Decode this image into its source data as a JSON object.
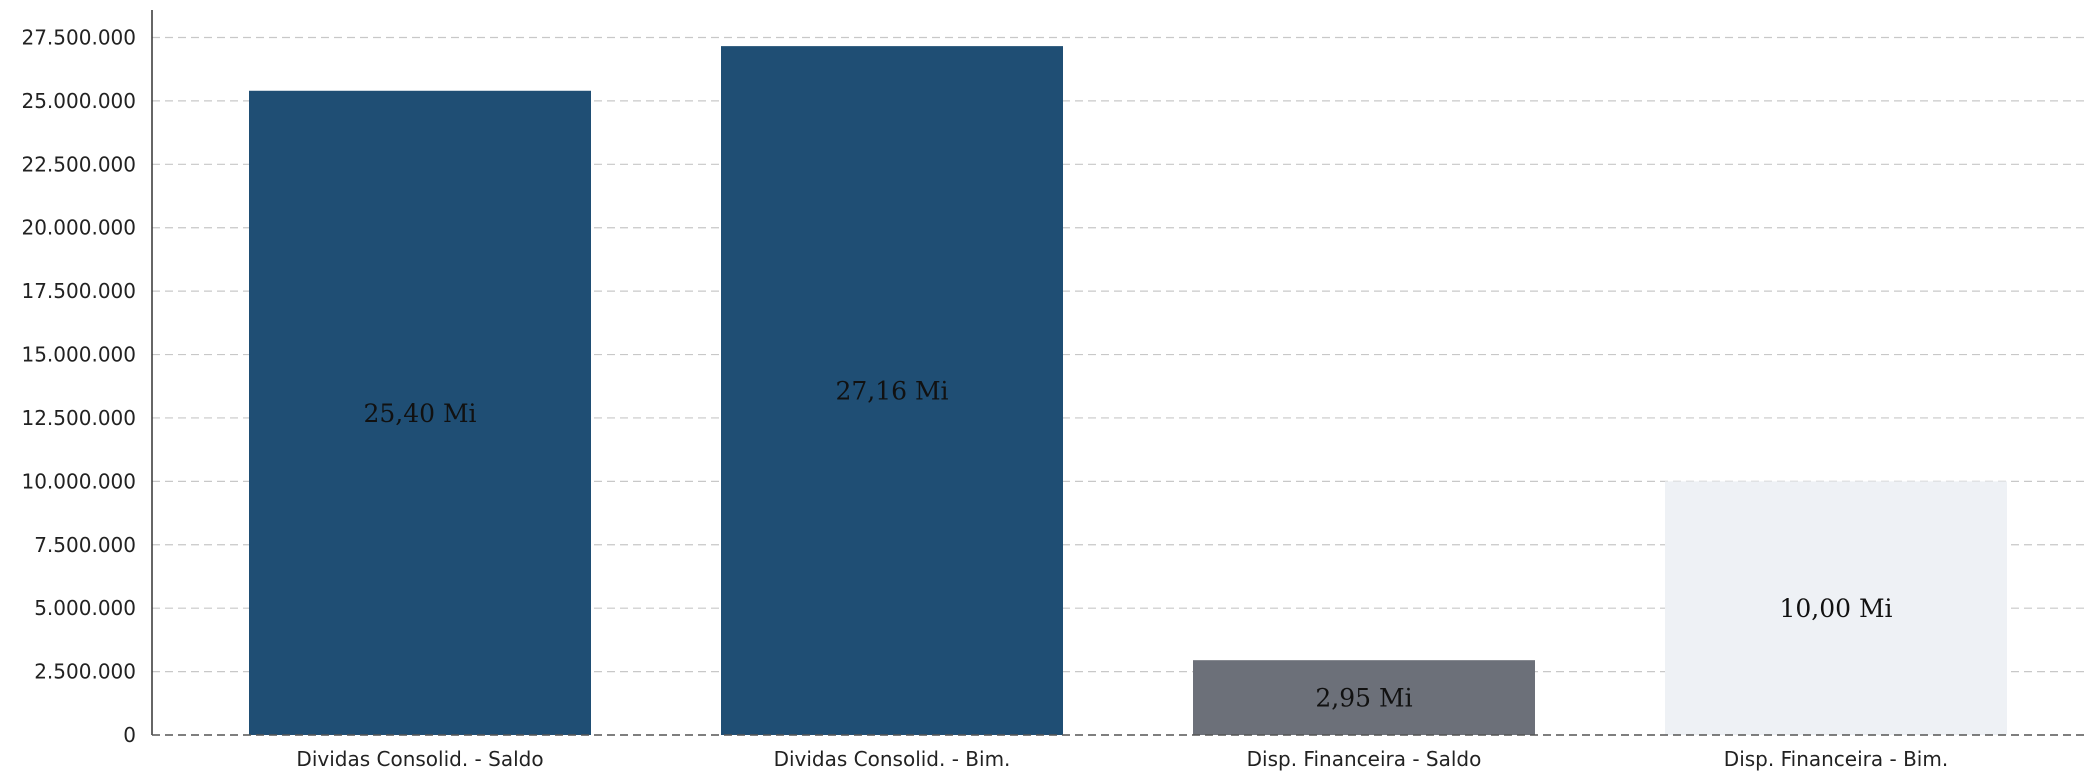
{
  "chart_data": {
    "type": "bar",
    "categories": [
      "Dividas Consolid. - Saldo",
      "Dividas Consolid. - Bim.",
      "Disp. Financeira - Saldo",
      "Disp. Financeira - Bim."
    ],
    "values": [
      25400000,
      27160000,
      2950000,
      10000000
    ],
    "data_labels": [
      "25,40 Mi",
      "27,16 Mi",
      "2,95 Mi",
      "10,00 Mi"
    ],
    "bar_colors": [
      "#1f4e74",
      "#1f4e74",
      "#6c7079",
      "#eef1f5"
    ],
    "ylim": [
      0,
      28500000
    ],
    "yticks": [
      0,
      2500000,
      5000000,
      7500000,
      10000000,
      12500000,
      15000000,
      17500000,
      20000000,
      22500000,
      25000000,
      27500000
    ],
    "ytick_labels": [
      "0",
      "2.500.000",
      "5.000.000",
      "7.500.000",
      "10.000.000",
      "12.500.000",
      "15.000.000",
      "17.500.000",
      "20.000.000",
      "22.500.000",
      "25.000.000",
      "27.500.000"
    ],
    "grid": true,
    "legend": "none",
    "title": "",
    "xlabel": "",
    "ylabel": ""
  }
}
